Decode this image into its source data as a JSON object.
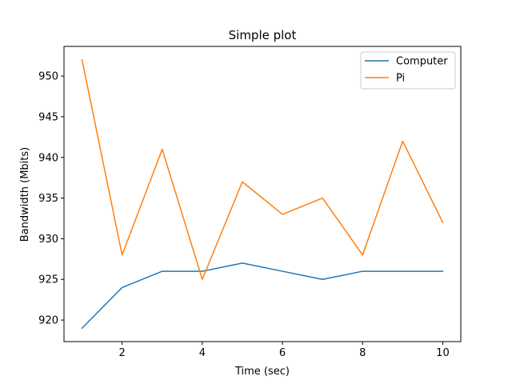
{
  "chart_data": {
    "type": "line",
    "title": "Simple plot",
    "xlabel": "Time (sec)",
    "ylabel": "Bandwidth (Mbits)",
    "xlim": [
      0.55,
      10.45
    ],
    "ylim": [
      917.35,
      953.65
    ],
    "xticks": [
      2,
      4,
      6,
      8,
      10
    ],
    "yticks": [
      920,
      925,
      930,
      935,
      940,
      945,
      950
    ],
    "grid": false,
    "legend_position": "top-right",
    "x": [
      1,
      2,
      3,
      4,
      5,
      6,
      7,
      8,
      9,
      10
    ],
    "series": [
      {
        "name": "Computer",
        "color": "#1f77b4",
        "values": [
          919,
          924,
          926,
          926,
          927,
          926,
          925,
          926,
          926,
          926
        ]
      },
      {
        "name": "Pi",
        "color": "#ff7f0e",
        "values": [
          952,
          928,
          941,
          925,
          937,
          933,
          935,
          928,
          942,
          932
        ]
      }
    ]
  }
}
